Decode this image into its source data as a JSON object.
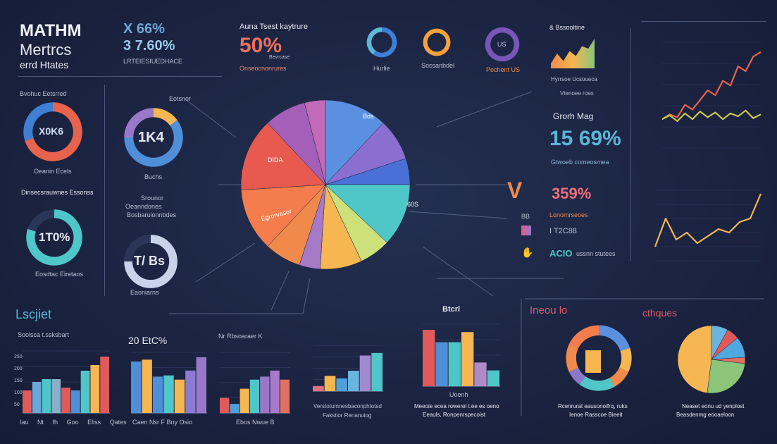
{
  "header": {
    "title1": "MATHM",
    "title2": "Mertrcs",
    "title3": "errd Htates",
    "stat1": "X 66%",
    "stat2": "3 7.60%",
    "stat_caption": "LRTEIESIUEDHACE",
    "kpi_label": "Auna Tsest kaytrure",
    "kpi_value": "50%",
    "kpi_caption": "Onseocnonrures",
    "kpi_small": "Bevrcase"
  },
  "icons": {
    "c1": "Hurlie",
    "c2": "IUS",
    "c2_label": "Socsanbdel",
    "c3": "US",
    "c3_label": "Pochent US"
  },
  "left": {
    "d1_label": "Bvohuc Eetsrred",
    "d1_value": "X0K6",
    "d1_caption": "Oeanin Ecels",
    "d2_label": "Eotsnor",
    "d2_value": "1K4",
    "d2_caption": "Buchs",
    "d3_label": "Dinsecsrauwnes Essonss",
    "d3_value": "1T0%",
    "d3_caption": "Eosdtac Eiretaos",
    "d4_label": "Srounor",
    "d4_caption": "Oeanndones",
    "d4_value": "T/ Bs",
    "d4_foot": "Eaoniarns",
    "list": "Bosbaruionnbdes"
  },
  "middle": {
    "pie_labels": [
      "Bds",
      "DIDA",
      "60S",
      "Egronrasor"
    ],
    "area_title": "& Bssooltine",
    "area_caption": "Hyrrsoe Ucsoueca",
    "area_caption2": "Vtenoee roso",
    "growth_label": "Grorh Mag",
    "growth_value": "15 69%",
    "growth_caption": "Gtwoeb comeosmea",
    "v_value": "359%",
    "v_caption": "Lonomrseoes",
    "v_item1": "BB",
    "v_item2": "I T2C88",
    "v_item3": "ACIO",
    "v_item3b": "ussnn stutees"
  },
  "bottom": {
    "section_title": "Lscjiet",
    "c1_title": "Soolsca t.ssksbart",
    "c1_ticks": [
      "Iau",
      "Nt",
      "fh",
      "Goo",
      "Eliss",
      "Qates"
    ],
    "c1_yticks": [
      "250",
      "200",
      "150",
      "100",
      "50"
    ],
    "c2_title": "20 EtC%",
    "c2_ticks": "Caen Nsr  F  Bny  Osio",
    "c3_title": "Nr Rbsoaraer K",
    "c3_ticks": "Ebos  Nwue  B",
    "c4_caption1": "Verstotumnesbaconphtotsd",
    "c4_caption2": "Fakstior Renanuiog",
    "c5_title": "Btcrl",
    "c5_xlabel": "Uoenh",
    "c5_caption1": "Meeoie ecea rowerel t.ee es oeno",
    "c5_caption2": "Eeauls, Ronpenrspecoist",
    "s2_title": "Ineou lo",
    "s3_title": "cthques",
    "donut_caption1": "Rcenrurat eausonoifrq, ruks",
    "donut_caption2": "Ienoe Rasscoe Bieeit",
    "pie_caption1": "Neaset eonu ud yenplost",
    "pie_caption2": "Beasdenmg eooaeloon"
  },
  "colors": {
    "bg": "#1b2442",
    "red": "#e05a5a",
    "orange": "#f08a4b",
    "yellow": "#f6b651",
    "teal": "#4fc7c9",
    "blue": "#4f8fd8",
    "purple": "#9a78c9",
    "green": "#8cc47a"
  },
  "chart_data": [
    {
      "id": "main-pie",
      "type": "pie",
      "values": [
        12,
        8,
        5,
        12,
        6,
        8,
        4,
        7,
        12,
        14,
        8,
        4
      ],
      "colors": [
        "#5b8fe0",
        "#8a6fd0",
        "#4a6fd6",
        "#4fc7c9",
        "#cde07a",
        "#f6b651",
        "#a77ac8",
        "#f08a4b",
        "#f57c4c",
        "#e85a4f",
        "#a45fb8",
        "#c06ab8"
      ]
    },
    {
      "id": "d1",
      "type": "donut",
      "values": [
        70,
        30
      ],
      "colors": [
        "#e8634d",
        "#3f7fd6"
      ]
    },
    {
      "id": "d2",
      "type": "donut",
      "values": [
        15,
        60,
        25
      ],
      "colors": [
        "#f6b651",
        "#4f8fd8",
        "#9a78c9"
      ]
    },
    {
      "id": "d3",
      "type": "donut",
      "values": [
        80,
        20
      ],
      "colors": [
        "#4fc7c9",
        "#2a3558"
      ]
    },
    {
      "id": "d4",
      "type": "donut",
      "values": [
        75,
        25
      ],
      "colors": [
        "#c8d2ea",
        "#2a3558"
      ]
    },
    {
      "id": "icon1",
      "type": "donut",
      "values": [
        60,
        40
      ],
      "colors": [
        "#3f7fd6",
        "#5bb9d6"
      ]
    },
    {
      "id": "icon2",
      "type": "donut",
      "values": [
        100
      ],
      "colors": [
        "#f6a23c"
      ]
    },
    {
      "id": "icon3",
      "type": "donut",
      "values": [
        100
      ],
      "colors": [
        "#7a55b8"
      ]
    },
    {
      "id": "area",
      "type": "area",
      "values": [
        2,
        6,
        3,
        7,
        5,
        9,
        8,
        12
      ],
      "colors": [
        "#f08a4b",
        "#f6b651",
        "#8cc47a"
      ]
    },
    {
      "id": "line1",
      "type": "line",
      "series": [
        {
          "name": "red",
          "values": [
            30,
            35,
            32,
            45,
            40,
            50,
            60,
            55,
            70,
            65,
            85,
            80,
            95,
            100
          ],
          "color": "#e8634d"
        },
        {
          "name": "multi",
          "values": [
            30,
            34,
            28,
            36,
            30,
            38,
            32,
            37,
            30,
            36,
            33,
            39,
            31,
            35
          ],
          "color": "#c8c84a"
        }
      ],
      "ylim": [
        0,
        110
      ]
    },
    {
      "id": "line2",
      "type": "line",
      "series": [
        {
          "name": "yellow",
          "values": [
            20,
            60,
            30,
            40,
            25,
            35,
            45,
            40,
            55,
            60,
            95
          ],
          "color": "#f6b651"
        }
      ],
      "ylim": [
        0,
        100
      ]
    },
    {
      "id": "bar1",
      "type": "bar",
      "values": [
        40,
        55,
        60,
        60,
        45,
        40,
        75,
        85,
        100
      ],
      "colors": [
        "#e05a5a",
        "#6aa6d9",
        "#4fc7c9",
        "#8ab0c9",
        "#e05a5a",
        "#4f8fd8",
        "#4fc7c9",
        "#f6b651",
        "#e05a5a"
      ],
      "ylim": [
        0,
        110
      ]
    },
    {
      "id": "bar2",
      "type": "bar",
      "values": [
        85,
        88,
        60,
        62,
        55,
        70,
        92
      ],
      "colors": [
        "#4f8fd8",
        "#f6b651",
        "#4f8fd8",
        "#4fc7c9",
        "#f6b651",
        "#8a7ad0",
        "#9a78c9"
      ],
      "ylim": [
        0,
        100
      ]
    },
    {
      "id": "bar3",
      "type": "bar",
      "values": [
        25,
        15,
        40,
        55,
        60,
        70,
        55
      ],
      "colors": [
        "#e05a5a",
        "#4f9fd8",
        "#f6b651",
        "#4fc7c9",
        "#9a78c9",
        "#a77ac8",
        "#e07060"
      ],
      "ylim": [
        0,
        100
      ]
    },
    {
      "id": "bar4",
      "type": "bar",
      "values": [
        10,
        30,
        25,
        40,
        70,
        75
      ],
      "colors": [
        "#e07080",
        "#f6b651",
        "#4f9fd8",
        "#6ab5e0",
        "#a18ad0",
        "#4fc7c9"
      ],
      "ylim": [
        0,
        90
      ]
    },
    {
      "id": "bar5",
      "type": "bar",
      "values": [
        100,
        78,
        78,
        96,
        42,
        28
      ],
      "colors": [
        "#e05a5a",
        "#4f8fd8",
        "#4fc7c9",
        "#f6b651",
        "#b08ac8",
        "#4fc7c9"
      ],
      "ylim": [
        0,
        110
      ]
    },
    {
      "id": "donut-bottom",
      "type": "donut",
      "values": [
        20,
        12,
        10,
        18,
        8,
        14,
        18
      ],
      "colors": [
        "#5b8fe0",
        "#f6b651",
        "#f08a4b",
        "#4fc7c9",
        "#8a78c9",
        "#f08a4b",
        "#f57c4c"
      ]
    },
    {
      "id": "pie-bottom",
      "type": "pie",
      "values": [
        8,
        6,
        10,
        3,
        25,
        48
      ],
      "colors": [
        "#6ab5e0",
        "#e05a5a",
        "#4fa8e0",
        "#e07060",
        "#8cc47a",
        "#f6b651"
      ]
    }
  ]
}
